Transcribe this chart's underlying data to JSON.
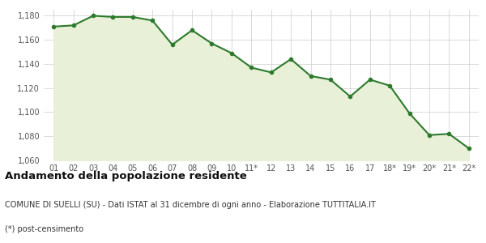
{
  "x_labels": [
    "01",
    "02",
    "03",
    "04",
    "05",
    "06",
    "07",
    "08",
    "09",
    "10",
    "11*",
    "12",
    "13",
    "14",
    "15",
    "16",
    "17",
    "18*",
    "19*",
    "20*",
    "21*",
    "22*"
  ],
  "y_values": [
    1171,
    1172,
    1180,
    1179,
    1179,
    1176,
    1156,
    1168,
    1157,
    1149,
    1137,
    1133,
    1144,
    1130,
    1127,
    1113,
    1127,
    1122,
    1099,
    1081,
    1082,
    1070
  ],
  "line_color": "#2d7a2d",
  "fill_color": "#e8f0d8",
  "marker": "o",
  "marker_size": 3,
  "line_width": 1.5,
  "ylim": [
    1060,
    1185
  ],
  "yticks": [
    1060,
    1080,
    1100,
    1120,
    1140,
    1160,
    1180
  ],
  "bg_color": "#ffffff",
  "grid_color": "#cccccc",
  "title": "Andamento della popolazione residente",
  "subtitle1": "COMUNE DI SUELLI (SU) - Dati ISTAT al 31 dicembre di ogni anno - Elaborazione TUTTITALIA.IT",
  "subtitle2": "(*) post-censimento",
  "title_fontsize": 9.5,
  "subtitle_fontsize": 7.0,
  "tick_fontsize": 7.0
}
